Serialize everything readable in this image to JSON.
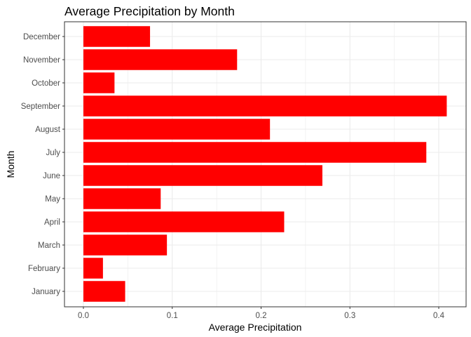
{
  "chart_data": {
    "type": "bar",
    "orientation": "horizontal",
    "title": "Average Precipitation by Month",
    "xlabel": "Average Precipitation",
    "ylabel": "Month",
    "categories": [
      "January",
      "February",
      "March",
      "April",
      "May",
      "June",
      "July",
      "August",
      "September",
      "October",
      "November",
      "December"
    ],
    "values": [
      0.047,
      0.022,
      0.094,
      0.226,
      0.087,
      0.269,
      0.386,
      0.21,
      0.409,
      0.035,
      0.173,
      0.075
    ],
    "xlim": [
      0,
      0.4
    ],
    "x_ticks": [
      0.0,
      0.1,
      0.2,
      0.3,
      0.4
    ],
    "x_tick_labels": [
      "0.0",
      "0.1",
      "0.2",
      "0.3",
      "0.4"
    ],
    "grid": true,
    "legend": "none",
    "bar_color": "#ff0000",
    "panel_border_color": "#333333",
    "grid_color": "#ebebeb"
  }
}
